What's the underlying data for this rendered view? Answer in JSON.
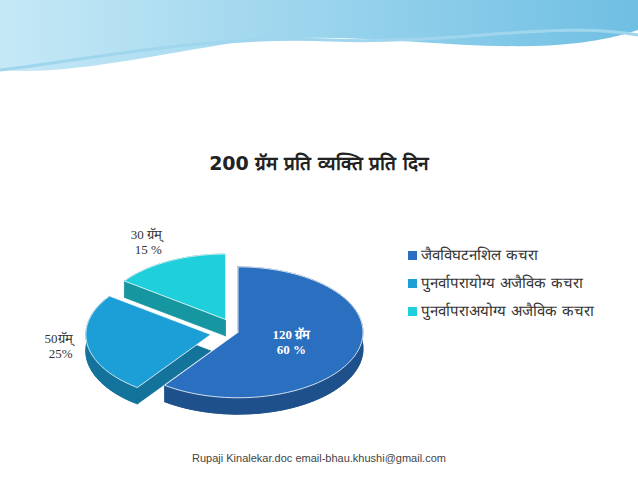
{
  "chart_data": {
    "type": "pie",
    "title": "200 ग्रॅम प्रति व्यक्ति प्रति दिन",
    "categories": [
      "जैवविघटनशिल कचरा",
      "पुनर्वापरायोग्य अजैविक कचरा",
      "पुनर्वापराअयोग्य अजैविक कचरा"
    ],
    "values": [
      60,
      25,
      15
    ],
    "value_labels": [
      "60 %",
      "25%",
      "15 %"
    ],
    "grams": [
      120,
      50,
      30
    ],
    "gram_labels": [
      "120 ग्रॅम",
      "50ग्रॅम्",
      "30 ग्रॅम्"
    ],
    "colors": [
      "#2a6fc0",
      "#1c9fd6",
      "#1fcfdc"
    ],
    "data_labels": true,
    "legend": "right",
    "caption": "Rupaji Kinalekar.doc email-bhau.khushi@gmail.com"
  }
}
